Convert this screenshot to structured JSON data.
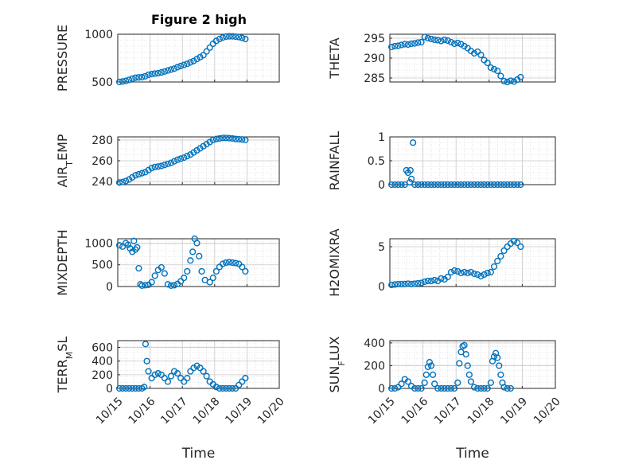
{
  "figure": {
    "title": "Figure 2 high"
  },
  "chart_data": [
    {
      "name": "pressure",
      "type": "scatter",
      "ylabel": "PRESSURE",
      "xlim": [
        0,
        5
      ],
      "ylim": [
        500,
        1000
      ],
      "yticks": [
        500,
        1000
      ],
      "xticks": [
        "10/15",
        "10/16",
        "10/17",
        "10/18",
        "10/19",
        "10/20"
      ],
      "xlabel": "",
      "grid": true,
      "marker": "circle",
      "color": "#0072BD",
      "x": [
        0.05,
        0.15,
        0.25,
        0.35,
        0.45,
        0.55,
        0.65,
        0.75,
        0.85,
        0.95,
        1.05,
        1.15,
        1.25,
        1.35,
        1.45,
        1.55,
        1.65,
        1.75,
        1.85,
        1.95,
        2.05,
        2.15,
        2.25,
        2.35,
        2.45,
        2.55,
        2.65,
        2.75,
        2.85,
        2.95,
        3.05,
        3.15,
        3.25,
        3.35,
        3.45,
        3.55,
        3.65,
        3.75,
        3.85,
        3.95
      ],
      "y": [
        500,
        505,
        512,
        522,
        535,
        545,
        548,
        550,
        560,
        575,
        582,
        588,
        592,
        600,
        610,
        620,
        630,
        640,
        655,
        668,
        678,
        690,
        705,
        720,
        740,
        760,
        780,
        820,
        860,
        900,
        930,
        950,
        965,
        975,
        978,
        978,
        975,
        970,
        962,
        950
      ]
    },
    {
      "name": "theta",
      "type": "scatter",
      "ylabel": "THETA",
      "xlim": [
        0,
        5
      ],
      "ylim": [
        284,
        296
      ],
      "yticks": [
        285,
        290,
        295
      ],
      "xticks": [
        "10/15",
        "10/16",
        "10/17",
        "10/18",
        "10/19",
        "10/20"
      ],
      "xlabel": "",
      "grid": true,
      "marker": "circle",
      "color": "#0072BD",
      "x": [
        0.05,
        0.15,
        0.25,
        0.35,
        0.45,
        0.55,
        0.65,
        0.75,
        0.85,
        0.95,
        1.05,
        1.15,
        1.25,
        1.35,
        1.45,
        1.55,
        1.65,
        1.75,
        1.85,
        1.95,
        2.05,
        2.15,
        2.25,
        2.35,
        2.45,
        2.55,
        2.65,
        2.75,
        2.85,
        2.95,
        3.05,
        3.15,
        3.25,
        3.35,
        3.45,
        3.55,
        3.65,
        3.75,
        3.85,
        3.95
      ],
      "y": [
        292.8,
        293.0,
        293.1,
        293.3,
        293.5,
        293.4,
        293.6,
        293.7,
        293.9,
        294.0,
        295.3,
        295.0,
        294.8,
        294.6,
        294.5,
        294.3,
        294.6,
        294.4,
        294.0,
        293.6,
        293.8,
        293.5,
        293.0,
        292.5,
        291.8,
        291.2,
        291.6,
        290.8,
        289.5,
        288.8,
        287.6,
        287.2,
        286.8,
        285.5,
        284.2,
        284.0,
        284.3,
        284.1,
        284.6,
        285.2
      ]
    },
    {
      "name": "air_temp",
      "type": "scatter",
      "ylabel": "AIR_TEMP",
      "ylabel_sub": "T",
      "xlim": [
        0,
        5
      ],
      "ylim": [
        237,
        283
      ],
      "yticks": [
        240,
        260,
        280
      ],
      "xticks": [
        "10/15",
        "10/16",
        "10/17",
        "10/18",
        "10/19",
        "10/20"
      ],
      "xlabel": "",
      "grid": true,
      "marker": "circle",
      "color": "#0072BD",
      "x": [
        0.05,
        0.15,
        0.25,
        0.35,
        0.45,
        0.55,
        0.65,
        0.75,
        0.85,
        0.95,
        1.05,
        1.15,
        1.25,
        1.35,
        1.45,
        1.55,
        1.65,
        1.75,
        1.85,
        1.95,
        2.05,
        2.15,
        2.25,
        2.35,
        2.45,
        2.55,
        2.65,
        2.75,
        2.85,
        2.95,
        3.05,
        3.15,
        3.25,
        3.35,
        3.45,
        3.55,
        3.65,
        3.75,
        3.85,
        3.95
      ],
      "y": [
        239,
        239.5,
        240.5,
        242,
        244,
        246,
        247,
        248,
        249,
        251,
        253,
        254,
        254.5,
        255,
        256,
        257,
        258,
        259.5,
        261,
        262,
        263,
        264.5,
        266,
        268,
        270,
        272,
        274,
        276,
        278,
        280,
        281,
        281.5,
        282,
        282,
        281.8,
        281.5,
        281,
        280.8,
        280.5,
        280
      ]
    },
    {
      "name": "rainfall",
      "type": "scatter",
      "ylabel": "RAINFALL",
      "xlim": [
        0,
        5
      ],
      "ylim": [
        0,
        1
      ],
      "yticks": [
        0,
        0.5,
        1
      ],
      "xticks": [
        "10/15",
        "10/16",
        "10/17",
        "10/18",
        "10/19",
        "10/20"
      ],
      "xlabel": "",
      "grid": true,
      "marker": "circle",
      "color": "#0072BD",
      "x": [
        0.05,
        0.15,
        0.25,
        0.35,
        0.45,
        0.5,
        0.55,
        0.6,
        0.62,
        0.65,
        0.7,
        0.75,
        0.85,
        0.95,
        1.05,
        1.15,
        1.25,
        1.35,
        1.45,
        1.55,
        1.65,
        1.75,
        1.85,
        1.95,
        2.05,
        2.15,
        2.25,
        2.35,
        2.45,
        2.55,
        2.65,
        2.75,
        2.85,
        2.95,
        3.05,
        3.15,
        3.25,
        3.35,
        3.45,
        3.55,
        3.65,
        3.75,
        3.85,
        3.95
      ],
      "y": [
        0,
        0,
        0,
        0,
        0,
        0.3,
        0.25,
        0.05,
        0.3,
        0.12,
        0.88,
        0,
        0,
        0,
        0,
        0,
        0,
        0,
        0,
        0,
        0,
        0,
        0,
        0,
        0,
        0,
        0,
        0,
        0,
        0,
        0,
        0,
        0,
        0,
        0,
        0,
        0,
        0,
        0,
        0,
        0,
        0,
        0,
        0
      ]
    },
    {
      "name": "mixdepth",
      "type": "scatter",
      "ylabel": "MIXDEPTH",
      "xlim": [
        0,
        5
      ],
      "ylim": [
        0,
        1100
      ],
      "yticks": [
        0,
        500,
        1000
      ],
      "xticks": [
        "10/15",
        "10/16",
        "10/17",
        "10/18",
        "10/19",
        "10/20"
      ],
      "xlabel": "",
      "grid": true,
      "marker": "circle",
      "color": "#0072BD",
      "x": [
        0.05,
        0.15,
        0.25,
        0.32,
        0.38,
        0.45,
        0.5,
        0.55,
        0.6,
        0.65,
        0.7,
        0.75,
        0.85,
        0.95,
        1.05,
        1.15,
        1.25,
        1.35,
        1.45,
        1.55,
        1.65,
        1.75,
        1.85,
        1.95,
        2.05,
        2.15,
        2.25,
        2.32,
        2.38,
        2.45,
        2.52,
        2.6,
        2.7,
        2.85,
        2.95,
        3.05,
        3.15,
        3.25,
        3.35,
        3.45,
        3.55,
        3.65,
        3.75,
        3.85,
        3.95
      ],
      "y": [
        950,
        920,
        1000,
        960,
        880,
        800,
        1050,
        850,
        900,
        420,
        50,
        20,
        30,
        40,
        100,
        250,
        380,
        440,
        300,
        50,
        20,
        30,
        60,
        120,
        200,
        350,
        600,
        800,
        1100,
        1000,
        700,
        350,
        150,
        100,
        200,
        350,
        450,
        520,
        550,
        560,
        550,
        540,
        520,
        450,
        350
      ]
    },
    {
      "name": "h2omixra",
      "type": "scatter",
      "ylabel": "H2OMIXRA",
      "xlim": [
        0,
        5
      ],
      "ylim": [
        0,
        6
      ],
      "yticks": [
        0,
        5
      ],
      "xticks": [
        "10/15",
        "10/16",
        "10/17",
        "10/18",
        "10/19",
        "10/20"
      ],
      "xlabel": "",
      "grid": true,
      "marker": "circle",
      "color": "#0072BD",
      "x": [
        0.05,
        0.15,
        0.25,
        0.35,
        0.45,
        0.55,
        0.65,
        0.75,
        0.85,
        0.95,
        1.05,
        1.15,
        1.25,
        1.35,
        1.45,
        1.55,
        1.65,
        1.75,
        1.85,
        1.95,
        2.05,
        2.15,
        2.25,
        2.35,
        2.45,
        2.55,
        2.65,
        2.75,
        2.85,
        2.95,
        3.05,
        3.15,
        3.25,
        3.35,
        3.45,
        3.55,
        3.65,
        3.75,
        3.85,
        3.95
      ],
      "y": [
        0.2,
        0.25,
        0.3,
        0.3,
        0.3,
        0.35,
        0.3,
        0.35,
        0.4,
        0.45,
        0.6,
        0.7,
        0.7,
        0.8,
        0.7,
        1.0,
        0.9,
        1.2,
        1.8,
        2.0,
        1.9,
        1.7,
        1.8,
        1.7,
        1.8,
        1.6,
        1.5,
        1.3,
        1.5,
        1.7,
        1.8,
        2.5,
        3.2,
        3.8,
        4.5,
        5.0,
        5.4,
        5.7,
        5.5,
        5.0
      ]
    },
    {
      "name": "terr_msl",
      "type": "scatter",
      "ylabel": "TERR_MSL",
      "ylabel_sub": "M",
      "xlim": [
        0,
        5
      ],
      "ylim": [
        0,
        700
      ],
      "yticks": [
        0,
        200,
        400,
        600
      ],
      "xticks": [
        "10/15",
        "10/16",
        "10/17",
        "10/18",
        "10/19",
        "10/20"
      ],
      "xlabel": "Time",
      "grid": true,
      "marker": "circle",
      "color": "#0072BD",
      "x": [
        0.05,
        0.15,
        0.25,
        0.35,
        0.45,
        0.55,
        0.65,
        0.75,
        0.82,
        0.86,
        0.9,
        0.95,
        1.05,
        1.15,
        1.25,
        1.35,
        1.45,
        1.55,
        1.65,
        1.75,
        1.85,
        1.95,
        2.05,
        2.15,
        2.25,
        2.35,
        2.45,
        2.55,
        2.65,
        2.75,
        2.85,
        2.95,
        3.05,
        3.15,
        3.25,
        3.35,
        3.45,
        3.55,
        3.65,
        3.75,
        3.85,
        3.95
      ],
      "y": [
        0,
        0,
        0,
        0,
        0,
        0,
        0,
        0,
        20,
        650,
        400,
        250,
        150,
        200,
        220,
        200,
        150,
        100,
        180,
        250,
        220,
        150,
        100,
        150,
        250,
        300,
        330,
        300,
        250,
        180,
        100,
        60,
        20,
        0,
        0,
        0,
        0,
        0,
        0,
        50,
        100,
        150
      ]
    },
    {
      "name": "sun_flux",
      "type": "scatter",
      "ylabel": "SUN_FLUX",
      "ylabel_sub": "F",
      "xlim": [
        0,
        5
      ],
      "ylim": [
        0,
        420
      ],
      "yticks": [
        0,
        200,
        400
      ],
      "xticks": [
        "10/15",
        "10/16",
        "10/17",
        "10/18",
        "10/19",
        "10/20"
      ],
      "xlabel": "Time",
      "grid": true,
      "marker": "circle",
      "color": "#0072BD",
      "x": [
        0.05,
        0.15,
        0.25,
        0.35,
        0.45,
        0.55,
        0.65,
        0.75,
        0.85,
        0.95,
        1.05,
        1.1,
        1.15,
        1.2,
        1.25,
        1.3,
        1.35,
        1.45,
        1.55,
        1.65,
        1.75,
        1.85,
        1.95,
        2.05,
        2.1,
        2.15,
        2.2,
        2.25,
        2.3,
        2.35,
        2.4,
        2.45,
        2.55,
        2.65,
        2.75,
        2.85,
        2.95,
        3.05,
        3.1,
        3.15,
        3.2,
        3.25,
        3.3,
        3.35,
        3.4,
        3.45,
        3.55,
        3.65
      ],
      "y": [
        0,
        0,
        10,
        40,
        80,
        60,
        20,
        0,
        0,
        0,
        50,
        120,
        190,
        230,
        200,
        120,
        40,
        0,
        0,
        0,
        0,
        0,
        0,
        50,
        220,
        320,
        370,
        380,
        300,
        200,
        120,
        60,
        10,
        0,
        0,
        0,
        0,
        50,
        240,
        280,
        310,
        270,
        200,
        120,
        50,
        10,
        0,
        0
      ]
    }
  ]
}
